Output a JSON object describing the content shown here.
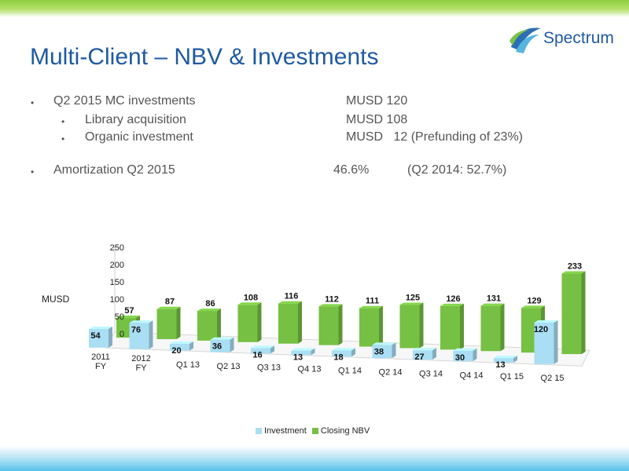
{
  "header": {
    "title": "Multi-Client – NBV & Investments",
    "logo_text": "Spectrum"
  },
  "bullets": [
    {
      "level": 1,
      "label": "Q2 2015 MC investments",
      "value": "MUSD 120"
    },
    {
      "level": 2,
      "label": "Library acquisition",
      "value": "MUSD 108"
    },
    {
      "level": 2,
      "label": "Organic investment",
      "value": "MUSD   12 (Prefunding of 23%)"
    },
    {
      "level": 1,
      "label": "Amortization Q2 2015",
      "value": "46.6%",
      "value2": "(Q2 2014: 52.7%)"
    }
  ],
  "bullet_glyph": "•",
  "colors": {
    "title": "#1f5aa0",
    "investment": "#a9def4",
    "closing_nbv": "#76c043"
  },
  "chart_data": {
    "type": "bar",
    "ylabel": "MUSD",
    "ylim": [
      0,
      250
    ],
    "yticks": [
      0,
      50,
      100,
      150,
      200,
      250
    ],
    "categories": [
      "2011 FY",
      "2012 FY",
      "Q1 13",
      "Q2 13",
      "Q3 13",
      "Q4 13",
      "Q1 14",
      "Q2 14",
      "Q3 14",
      "Q4 14",
      "Q1 15",
      "Q2 15"
    ],
    "series": [
      {
        "name": "Investment",
        "values": [
          54,
          76,
          20,
          36,
          16,
          13,
          18,
          38,
          27,
          30,
          13,
          120
        ]
      },
      {
        "name": "Closing NBV",
        "values": [
          57,
          87,
          86,
          108,
          116,
          112,
          111,
          125,
          126,
          131,
          129,
          233
        ]
      }
    ],
    "legend": "bottom",
    "grid": false
  }
}
